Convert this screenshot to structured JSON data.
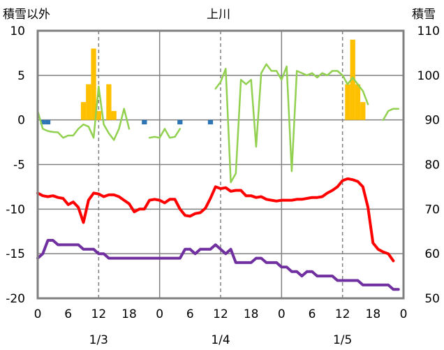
{
  "chart_data": {
    "type": "bar+line",
    "title": "上川",
    "ylabel_left": "積雪以外",
    "ylabel_right": "積雪",
    "ylim_left": [
      -20,
      10
    ],
    "yticks_left": [
      10,
      5,
      0,
      -5,
      -10,
      -15,
      -20
    ],
    "ylim_right": [
      50,
      110
    ],
    "yticks_right": [
      110,
      100,
      90,
      80,
      70,
      60,
      50
    ],
    "xlim_hours": [
      0,
      72
    ],
    "x_tick_labels": [
      "0",
      "6",
      "12",
      "18",
      "0",
      "6",
      "12",
      "18",
      "0",
      "6",
      "12",
      "18",
      "0"
    ],
    "date_labels": [
      {
        "label": "1/3",
        "hour": 12
      },
      {
        "label": "1/4",
        "hour": 36
      },
      {
        "label": "1/5",
        "hour": 60
      }
    ],
    "grid": "dashed vertical at 12h, solid vertical at 0h",
    "colors": {
      "snowfall": "#FFC000",
      "precipitation": "#2E75B6",
      "snow_depth": "#92D050",
      "temp_max": "#FF0000",
      "temp_min": "#7030A0",
      "grid": "#808080"
    },
    "series": [
      {
        "axis": "left",
        "type": "bar",
        "color_key": "snowfall",
        "values": [
          [
            9,
            2
          ],
          [
            10,
            4
          ],
          [
            11,
            8
          ],
          [
            12,
            1
          ],
          [
            14,
            4
          ],
          [
            15,
            1
          ],
          [
            61,
            4
          ],
          [
            62,
            9
          ],
          [
            63,
            4
          ],
          [
            64,
            2
          ]
        ]
      },
      {
        "axis": "left",
        "type": "bar",
        "color_key": "precipitation",
        "values": [
          [
            1,
            -0.5
          ],
          [
            2,
            -0.5
          ],
          [
            21,
            -0.5
          ],
          [
            28,
            -0.5
          ],
          [
            34,
            -0.5
          ]
        ]
      },
      {
        "axis": "right",
        "type": "line",
        "color_key": "snow_depth",
        "segments": [
          [
            [
              0,
              92
            ],
            [
              1,
              88
            ],
            [
              2,
              87.5
            ],
            [
              3,
              87.3
            ],
            [
              4,
              87.2
            ],
            [
              5,
              86
            ],
            [
              6,
              86.5
            ],
            [
              7,
              86.5
            ],
            [
              8,
              88
            ],
            [
              9,
              89
            ],
            [
              10,
              88.5
            ],
            [
              11,
              86
            ],
            [
              12,
              97.5
            ],
            [
              13,
              89
            ],
            [
              14,
              87
            ],
            [
              15,
              85.5
            ],
            [
              16,
              88
            ],
            [
              17,
              92.5
            ],
            [
              18,
              88
            ]
          ],
          [
            [
              22,
              86
            ],
            [
              23,
              86.2
            ],
            [
              24,
              86
            ],
            [
              25,
              88
            ],
            [
              26,
              86
            ],
            [
              27,
              86.2
            ],
            [
              28,
              88
            ]
          ],
          [
            [
              35,
              97
            ],
            [
              36,
              98.5
            ],
            [
              37,
              101.5
            ],
            [
              38,
              76
            ],
            [
              39,
              78
            ],
            [
              40,
              99
            ],
            [
              41,
              98
            ],
            [
              42,
              99
            ],
            [
              43,
              84
            ],
            [
              44,
              100.5
            ],
            [
              45,
              102.5
            ],
            [
              46,
              101
            ],
            [
              47,
              101
            ],
            [
              48,
              99
            ],
            [
              49,
              102
            ],
            [
              50,
              78.5
            ],
            [
              51,
              101
            ],
            [
              52,
              100.5
            ],
            [
              53,
              100
            ],
            [
              54,
              100.5
            ],
            [
              55,
              99.5
            ],
            [
              56,
              100.5
            ],
            [
              57,
              100
            ],
            [
              58,
              101
            ],
            [
              59,
              101
            ],
            [
              60,
              100
            ],
            [
              61,
              98
            ],
            [
              62,
              99.5
            ],
            [
              63,
              98
            ],
            [
              64,
              96.5
            ],
            [
              65,
              93.5
            ]
          ],
          [
            [
              68,
              90
            ],
            [
              69,
              92
            ],
            [
              70,
              92.5
            ],
            [
              71,
              92.5
            ]
          ]
        ]
      },
      {
        "axis": "left",
        "type": "line",
        "color_key": "temp_max",
        "values": [
          [
            0,
            -8.2
          ],
          [
            1,
            -8.5
          ],
          [
            2,
            -8.6
          ],
          [
            3,
            -8.5
          ],
          [
            4,
            -8.7
          ],
          [
            5,
            -8.8
          ],
          [
            6,
            -9.5
          ],
          [
            7,
            -9.2
          ],
          [
            8,
            -9.8
          ],
          [
            9,
            -11.5
          ],
          [
            10,
            -9.0
          ],
          [
            11,
            -8.2
          ],
          [
            12,
            -8.3
          ],
          [
            13,
            -8.6
          ],
          [
            14,
            -8.4
          ],
          [
            15,
            -8.4
          ],
          [
            16,
            -8.6
          ],
          [
            17,
            -9.0
          ],
          [
            18,
            -9.4
          ],
          [
            19,
            -10.3
          ],
          [
            20,
            -10.0
          ],
          [
            21,
            -10.0
          ],
          [
            22,
            -9.0
          ],
          [
            23,
            -8.9
          ],
          [
            24,
            -9.0
          ],
          [
            25,
            -9.3
          ],
          [
            26,
            -8.9
          ],
          [
            27,
            -8.9
          ],
          [
            28,
            -10.0
          ],
          [
            29,
            -10.7
          ],
          [
            30,
            -10.8
          ],
          [
            31,
            -10.5
          ],
          [
            32,
            -10.4
          ],
          [
            33,
            -9.9
          ],
          [
            34,
            -8.8
          ],
          [
            35,
            -7.5
          ],
          [
            36,
            -7.7
          ],
          [
            37,
            -7.6
          ],
          [
            38,
            -8.0
          ],
          [
            39,
            -7.9
          ],
          [
            40,
            -7.9
          ],
          [
            41,
            -8.5
          ],
          [
            42,
            -8.5
          ],
          [
            43,
            -8.7
          ],
          [
            44,
            -8.6
          ],
          [
            45,
            -8.9
          ],
          [
            46,
            -9.0
          ],
          [
            47,
            -9.1
          ],
          [
            48,
            -9.0
          ],
          [
            49,
            -9.0
          ],
          [
            50,
            -9.0
          ],
          [
            51,
            -8.9
          ],
          [
            52,
            -8.9
          ],
          [
            53,
            -8.8
          ],
          [
            54,
            -8.7
          ],
          [
            55,
            -8.7
          ],
          [
            56,
            -8.6
          ],
          [
            57,
            -8.2
          ],
          [
            58,
            -7.9
          ],
          [
            59,
            -7.5
          ],
          [
            60,
            -6.8
          ],
          [
            61,
            -6.6
          ],
          [
            62,
            -6.7
          ],
          [
            63,
            -6.9
          ],
          [
            64,
            -7.5
          ],
          [
            65,
            -9.8
          ],
          [
            66,
            -13.8
          ],
          [
            67,
            -14.5
          ],
          [
            68,
            -14.8
          ],
          [
            69,
            -15.0
          ],
          [
            70,
            -15.8
          ]
        ]
      },
      {
        "axis": "left",
        "type": "line",
        "color_key": "temp_min",
        "values": [
          [
            0,
            -15.5
          ],
          [
            1,
            -15.0
          ],
          [
            2,
            -13.5
          ],
          [
            3,
            -13.5
          ],
          [
            4,
            -14.0
          ],
          [
            8,
            -14.0
          ],
          [
            9,
            -14.5
          ],
          [
            11,
            -14.5
          ],
          [
            12,
            -15.0
          ],
          [
            13,
            -15.0
          ],
          [
            14,
            -15.5
          ],
          [
            28,
            -15.5
          ],
          [
            29,
            -14.5
          ],
          [
            30,
            -14.5
          ],
          [
            31,
            -15.0
          ],
          [
            32,
            -14.5
          ],
          [
            34,
            -14.5
          ],
          [
            35,
            -14.0
          ],
          [
            36,
            -14.5
          ],
          [
            37,
            -15.0
          ],
          [
            38,
            -14.5
          ],
          [
            39,
            -16.0
          ],
          [
            42,
            -16.0
          ],
          [
            43,
            -15.5
          ],
          [
            44,
            -15.5
          ],
          [
            45,
            -16.0
          ],
          [
            47,
            -16.0
          ],
          [
            48,
            -16.5
          ],
          [
            49,
            -16.5
          ],
          [
            50,
            -17.0
          ],
          [
            51,
            -17.0
          ],
          [
            52,
            -17.5
          ],
          [
            53,
            -17.0
          ],
          [
            54,
            -17.0
          ],
          [
            55,
            -17.5
          ],
          [
            58,
            -17.5
          ],
          [
            59,
            -18.0
          ],
          [
            63,
            -18.0
          ],
          [
            64,
            -18.5
          ],
          [
            69,
            -18.5
          ],
          [
            70,
            -19.0
          ],
          [
            71,
            -19.0
          ]
        ]
      }
    ]
  }
}
